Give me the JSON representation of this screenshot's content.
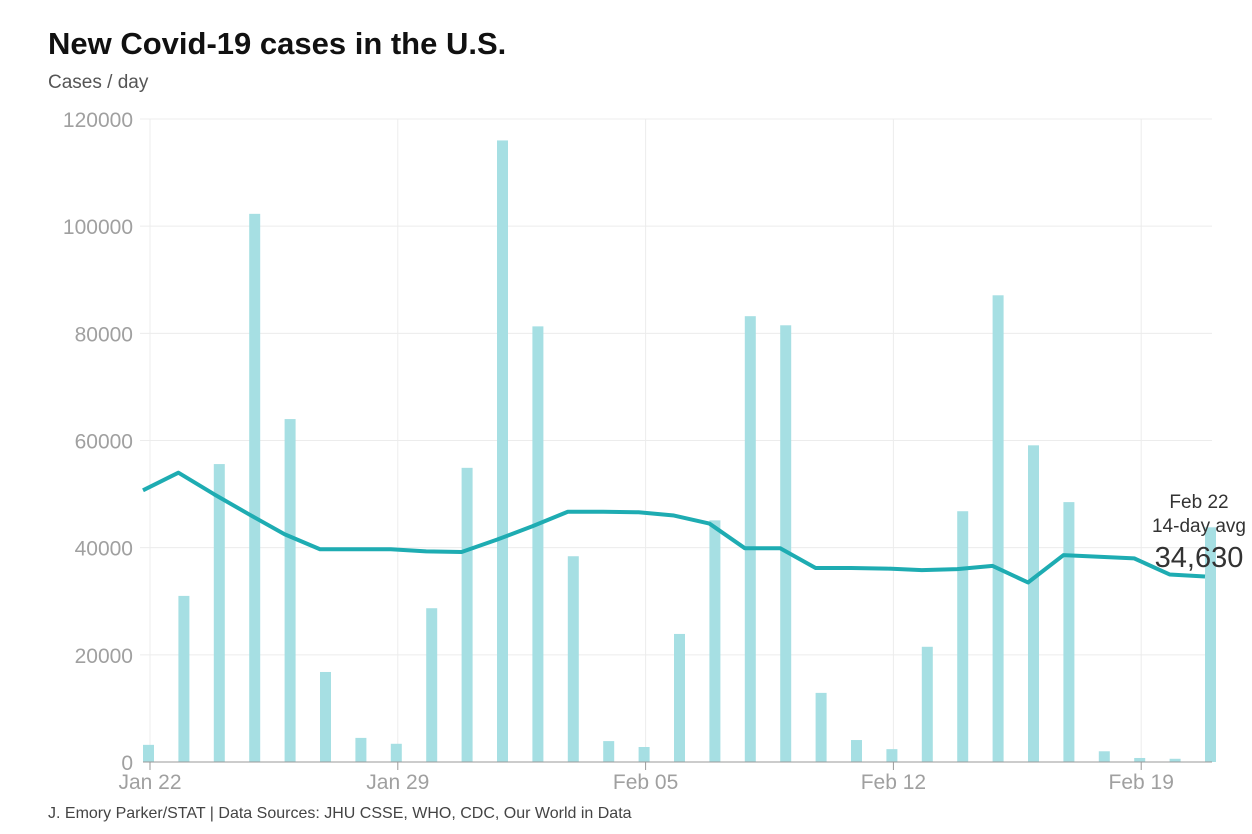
{
  "title": "New Covid-19 cases in the U.S.",
  "subtitle": "Cases / day",
  "source": "J. Emory Parker/STAT | Data Sources: JHU CSSE, WHO, CDC, Our World in Data",
  "colors": {
    "bars": "#a6dfe3",
    "line": "#1eacb2"
  },
  "chart_data": {
    "type": "bar",
    "ylabel": "Cases / day",
    "ylim": [
      0,
      120000
    ],
    "yticks": [
      0,
      20000,
      40000,
      60000,
      80000,
      100000,
      120000
    ],
    "ytick_labels": [
      "0",
      "20000",
      "40000",
      "60000",
      "80000",
      "100000",
      "120000"
    ],
    "xtick_labels": [
      "Jan 22",
      "Jan 29",
      "Feb 05",
      "Feb 12",
      "Feb 19"
    ],
    "xtick_index": [
      0,
      7,
      14,
      21,
      28
    ],
    "grid": true,
    "categories": [
      "Jan 22",
      "Jan 23",
      "Jan 24",
      "Jan 25",
      "Jan 26",
      "Jan 27",
      "Jan 28",
      "Jan 29",
      "Jan 30",
      "Jan 31",
      "Feb 01",
      "Feb 02",
      "Feb 03",
      "Feb 04",
      "Feb 05",
      "Feb 06",
      "Feb 07",
      "Feb 08",
      "Feb 09",
      "Feb 10",
      "Feb 11",
      "Feb 12",
      "Feb 13",
      "Feb 14",
      "Feb 15",
      "Feb 16",
      "Feb 17",
      "Feb 18",
      "Feb 19",
      "Feb 20",
      "Feb 21"
    ],
    "series": [
      {
        "type": "bar",
        "values": [
          3200,
          31000,
          55600,
          102300,
          64000,
          16800,
          4500,
          3400,
          28700,
          54900,
          116000,
          81300,
          38400,
          3900,
          2800,
          23900,
          45100,
          83200,
          81500,
          12900,
          4100,
          2400,
          21500,
          46800,
          87100,
          59100,
          48500,
          2000,
          750,
          600,
          43800
        ]
      },
      {
        "type": "line",
        "name": "14-day avg",
        "values": [
          50700,
          54000,
          50000,
          46200,
          42500,
          39700,
          39700,
          39700,
          39300,
          39200,
          41500,
          44000,
          46700,
          46700,
          46600,
          46000,
          44500,
          39900,
          39900,
          36200,
          36200,
          36100,
          35800,
          36000,
          36600,
          33500,
          38600,
          38300,
          38000,
          35000,
          34630
        ]
      }
    ],
    "annotation": {
      "date": "Feb 22",
      "label": "14-day avg",
      "value": "34,630"
    }
  }
}
